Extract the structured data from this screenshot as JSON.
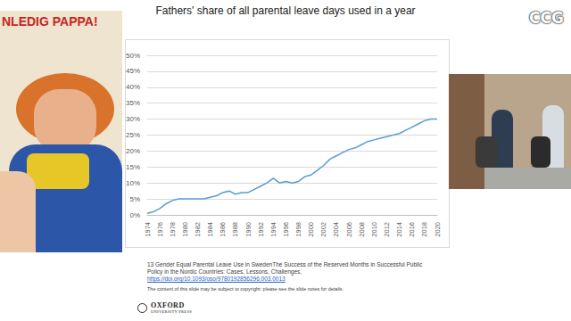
{
  "chart_data": {
    "type": "line",
    "title": "Fathers' share of all parental leave days used in a year",
    "x": [
      1974,
      1975,
      1976,
      1977,
      1978,
      1979,
      1980,
      1981,
      1982,
      1983,
      1984,
      1985,
      1986,
      1987,
      1988,
      1989,
      1990,
      1991,
      1992,
      1993,
      1994,
      1995,
      1996,
      1997,
      1998,
      1999,
      2000,
      2001,
      2002,
      2003,
      2004,
      2005,
      2006,
      2007,
      2008,
      2009,
      2010,
      2011,
      2012,
      2013,
      2014,
      2015,
      2016,
      2017,
      2018,
      2019,
      2020
    ],
    "values": [
      0.5,
      1,
      2,
      3.5,
      4.5,
      5,
      5,
      5,
      5,
      5,
      5.5,
      6,
      7,
      7.5,
      6.5,
      7,
      7,
      8,
      9,
      10,
      11.5,
      10,
      10.5,
      10,
      10.5,
      12,
      12.5,
      14,
      15.5,
      17.5,
      18.5,
      19.5,
      20.5,
      21,
      22,
      23,
      23.5,
      24,
      24.5,
      25,
      25.5,
      26.5,
      27.5,
      28.5,
      29.5,
      30,
      30
    ],
    "color": "#5b9bd5",
    "line_style": "solid",
    "xlim": [
      1974,
      2020
    ],
    "xticks": [
      1974,
      1976,
      1978,
      1980,
      1982,
      1984,
      1986,
      1988,
      1990,
      1992,
      1994,
      1996,
      1998,
      2000,
      2002,
      2004,
      2006,
      2008,
      2010,
      2012,
      2014,
      2016,
      2018,
      2020
    ],
    "ylim": [
      0,
      50
    ],
    "yticks": [
      {
        "value": 0,
        "label": "0%"
      },
      {
        "value": 5,
        "label": "5%"
      },
      {
        "value": 10,
        "label": "10%"
      },
      {
        "value": 15,
        "label": "15%"
      },
      {
        "value": 20,
        "label": "20%"
      },
      {
        "value": 25,
        "label": "25%"
      },
      {
        "value": 30,
        "label": "30%"
      },
      {
        "value": 35,
        "label": "35%"
      },
      {
        "value": 40,
        "label": "40%"
      },
      {
        "value": 45,
        "label": "45%"
      },
      {
        "value": 50,
        "label": "50%"
      }
    ],
    "grid": true
  },
  "poster_text": "NLEDIG PAPPA!",
  "logo": "CCG",
  "citation": [
    "13 Gender Equal Parental Leave Use in SwedenThe Success of the Reserved Months in Successful Public",
    "Policy in the Nordic Countries: Cases, Lessons, Challenges,"
  ],
  "link": "https://doi.org/10.1093/oso/9780192856296.003.0013",
  "notice": "The content of this slide may be subject to copyright: please see the slide notes for details.",
  "publisher": [
    "OXFORD",
    "UNIVERSITY PRESS"
  ]
}
